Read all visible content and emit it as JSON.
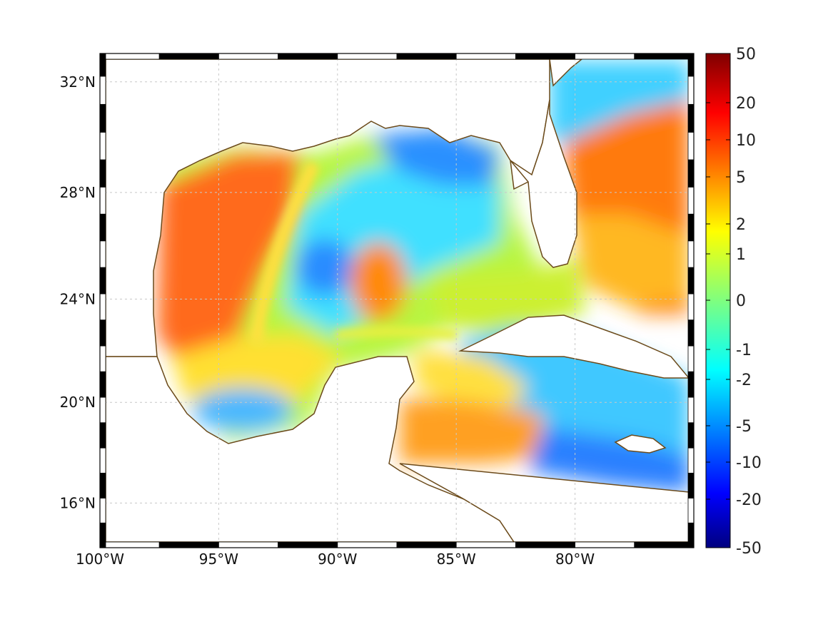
{
  "chart_data": {
    "type": "heatmap",
    "projection": "mercator",
    "region": {
      "lon_range": [
        -100,
        -75
      ],
      "lat_range": [
        14.2,
        33
      ]
    },
    "x_ticks": [
      "100°W",
      "95°W",
      "90°W",
      "85°W",
      "80°W"
    ],
    "y_ticks": [
      "32°N",
      "28°N",
      "24°N",
      "20°N",
      "16°N"
    ],
    "x_tick_values": [
      -100,
      -95,
      -90,
      -85,
      -80
    ],
    "y_tick_values": [
      32,
      28,
      24,
      20,
      16
    ],
    "grid": true,
    "frame": "black-white checkered border",
    "colorbar": {
      "placement": "right",
      "colormap": "jet",
      "range": [
        -50,
        50
      ],
      "tick_labels": [
        "50",
        "20",
        "10",
        "5",
        "2",
        "1",
        "0",
        "-1",
        "-2",
        "-5",
        "-10",
        "-20",
        "-50"
      ],
      "tick_values": [
        50,
        20,
        10,
        5,
        2,
        1,
        0,
        -1,
        -2,
        -5,
        -10,
        -20,
        -50
      ]
    },
    "field_regions": [
      {
        "area": "western Gulf of Mexico",
        "value": 7
      },
      {
        "area": "central eastern Gulf eddy",
        "value": 5
      },
      {
        "area": "northeastern Gulf",
        "value": -4
      },
      {
        "area": "central Gulf",
        "value": -2
      },
      {
        "area": "Atlantic off Georgia coast",
        "value": -2
      },
      {
        "area": "Atlantic off Florida",
        "value": 6
      },
      {
        "area": "northwestern Caribbean",
        "value": 3
      },
      {
        "area": "central Caribbean",
        "value": -3
      }
    ],
    "coastline_color": "#6b4a1a"
  }
}
